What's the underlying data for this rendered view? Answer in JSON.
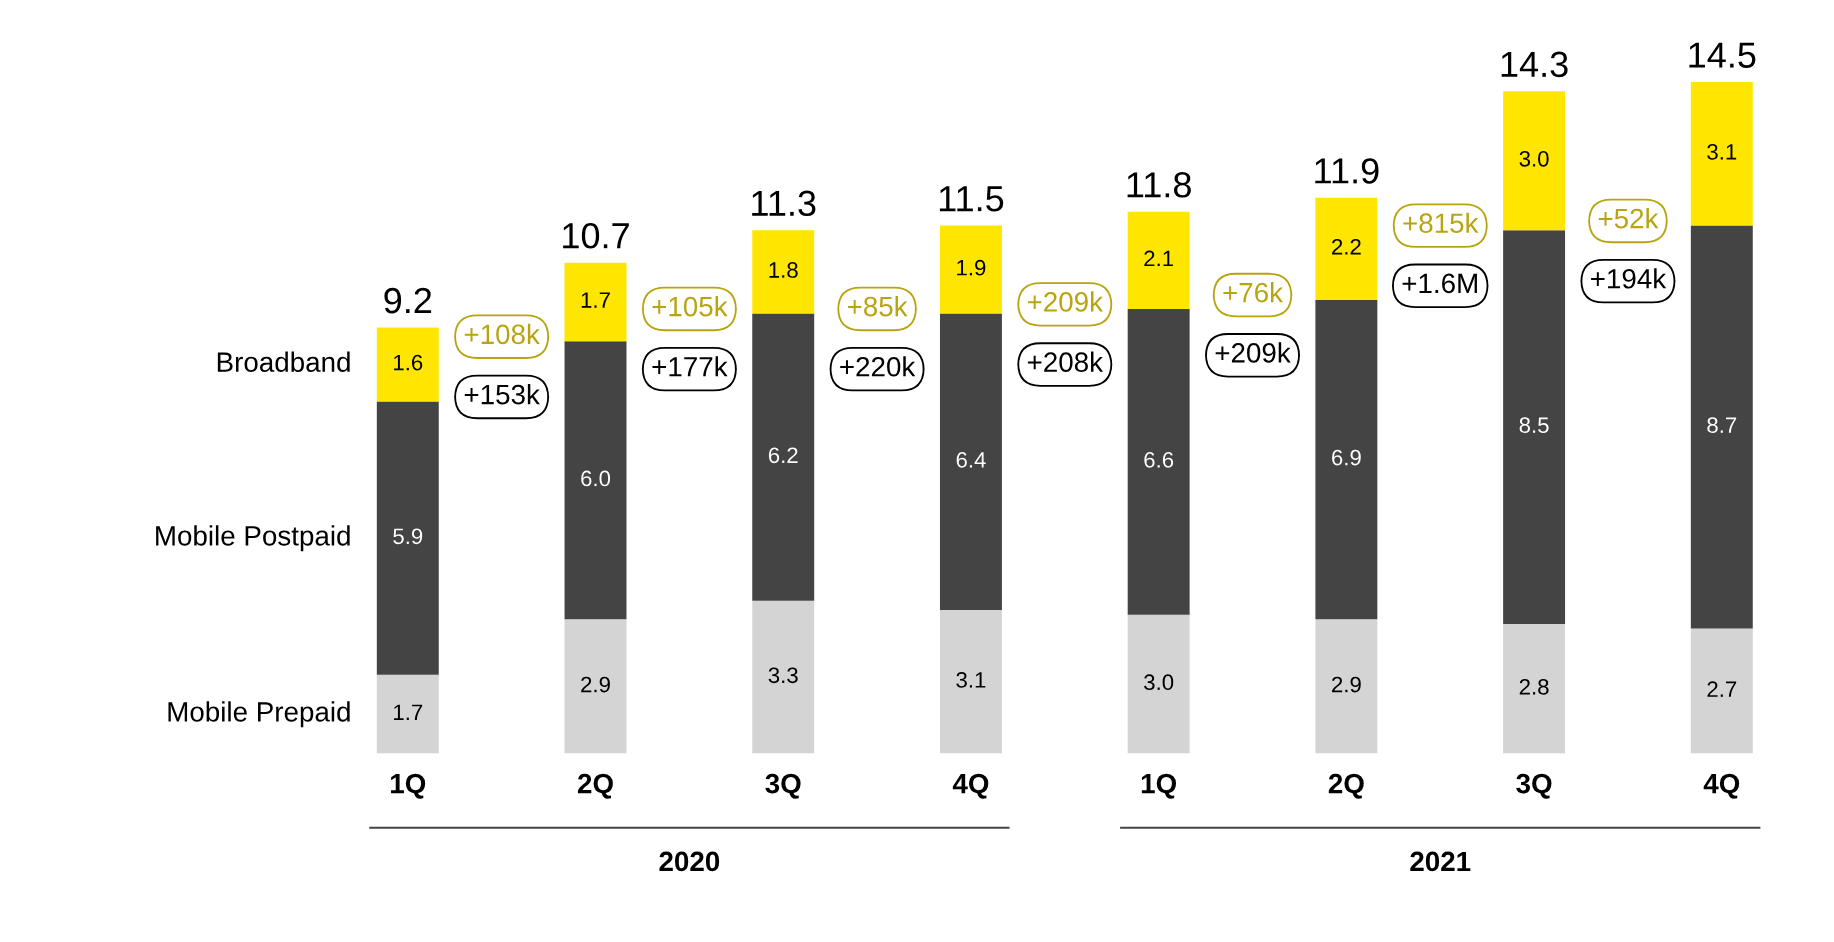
{
  "chart_data": {
    "type": "bar",
    "stacked": true,
    "legend": false,
    "grid": false,
    "categories": [
      "1Q",
      "2Q",
      "3Q",
      "4Q",
      "1Q",
      "2Q",
      "3Q",
      "4Q"
    ],
    "series": [
      {
        "name": "Mobile Prepaid",
        "color": "#d4d4d4",
        "values": [
          1.7,
          2.9,
          3.3,
          3.1,
          3.0,
          2.9,
          2.8,
          2.7
        ],
        "value_labels": [
          "1.7",
          "2.9",
          "3.3",
          "3.1",
          "3.0",
          "2.9",
          "2.8",
          "2.7"
        ]
      },
      {
        "name": "Mobile Postpaid",
        "color": "#444444",
        "values": [
          5.9,
          6.0,
          6.2,
          6.4,
          6.6,
          6.9,
          8.5,
          8.7
        ],
        "value_labels": [
          "5.9",
          "6.0",
          "6.2",
          "6.4",
          "6.6",
          "6.9",
          "8.5",
          "8.7"
        ]
      },
      {
        "name": "Broadband",
        "color": "#ffe600",
        "values": [
          1.6,
          1.7,
          1.8,
          1.9,
          2.1,
          2.2,
          3.0,
          3.1
        ],
        "value_labels": [
          "1.6",
          "1.7",
          "1.8",
          "1.9",
          "2.1",
          "2.2",
          "3.0",
          "3.1"
        ]
      }
    ],
    "totals": [
      "9.2",
      "10.7",
      "11.3",
      "11.5",
      "11.8",
      "11.9",
      "14.3",
      "14.5"
    ],
    "annotations": [
      "+108k",
      "+153k",
      "+105k",
      "+177k",
      "+85k",
      "+220k",
      "+209k",
      "+208k",
      "+76k",
      "+209k",
      "+815k",
      "+1.6M",
      "+52k",
      "+194k",
      "2020",
      "2021"
    ]
  }
}
